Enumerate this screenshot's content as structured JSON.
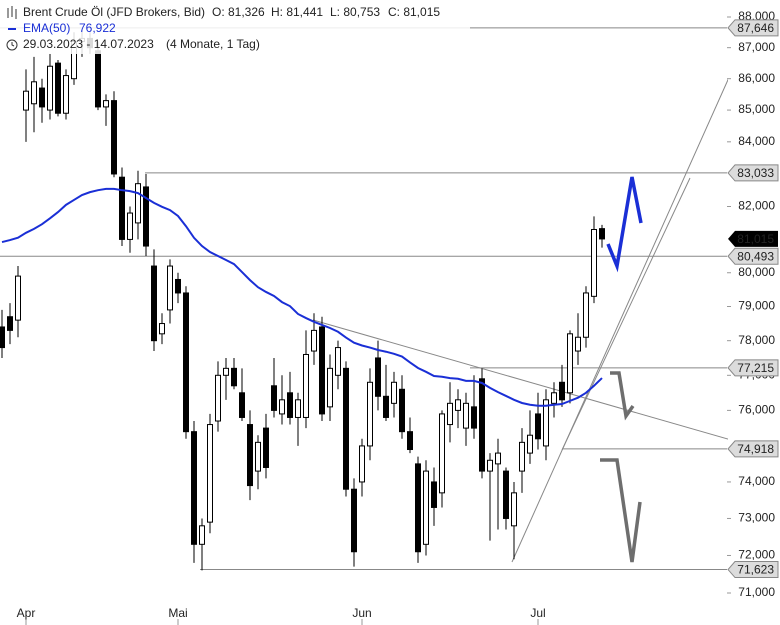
{
  "chart_data": {
    "type": "candlestick",
    "header": {
      "title": "Brent Crude Öl (JFD Brokers, Bid)",
      "open_label": "O: 81,326",
      "high_label": "H: 81,441",
      "low_label": "L: 80,753",
      "close_label": "C: 81,015",
      "indicator_value_label": "76,922",
      "date_range": "29.03.2023 - 14.07.2023",
      "duration": "(4 Monate, 1 Tag)"
    },
    "categories": [
      null,
      null,
      null,
      "Apr",
      null,
      null,
      null,
      null,
      null,
      null,
      null,
      null,
      null,
      null,
      null,
      null,
      null,
      null,
      null,
      null,
      null,
      null,
      "Mai",
      null,
      null,
      null,
      null,
      null,
      null,
      null,
      null,
      null,
      null,
      null,
      null,
      null,
      null,
      null,
      null,
      null,
      null,
      null,
      null,
      null,
      null,
      "Jun",
      null,
      null,
      null,
      null,
      null,
      null,
      null,
      null,
      null,
      null,
      null,
      null,
      null,
      null,
      null,
      null,
      null,
      null,
      null,
      null,
      null,
      "Jul",
      null,
      null,
      null,
      null,
      null,
      null,
      null,
      null
    ],
    "open": [
      78400,
      78700,
      78600,
      85000,
      85200,
      85700,
      85000,
      86500,
      84900,
      86000,
      87200,
      87300,
      86900,
      85100,
      85300,
      82900,
      81000,
      81500,
      82600,
      80200,
      78200,
      78900,
      79800,
      79400,
      75400,
      72300,
      72900,
      75700,
      77000,
      77200,
      76500,
      75600,
      74300,
      75500,
      76700,
      75900,
      76500,
      75800,
      75800,
      77700,
      78400,
      76100,
      77000,
      77200,
      73800,
      74000,
      75000,
      77500,
      76400,
      76200,
      76600,
      75400,
      74500,
      72300,
      74000,
      73700,
      75600,
      76000,
      75500,
      76100,
      76900,
      74300,
      74500,
      74300,
      72800,
      74300,
      74800,
      75900,
      75000,
      76200,
      76800,
      76500,
      77700,
      78100,
      79300,
      81326
    ],
    "high": [
      78900,
      79100,
      80200,
      86300,
      86700,
      86000,
      86800,
      86600,
      86300,
      87500,
      87600,
      87500,
      87200,
      85500,
      85600,
      83200,
      82000,
      83100,
      83000,
      80700,
      78800,
      80400,
      80000,
      79600,
      75700,
      73000,
      75900,
      77400,
      77500,
      77500,
      77200,
      76000,
      75300,
      75900,
      77500,
      77000,
      77100,
      76500,
      78300,
      78800,
      78700,
      77600,
      78000,
      77400,
      74100,
      75200,
      77200,
      78000,
      77300,
      77100,
      77000,
      75800,
      74700,
      74600,
      74400,
      76000,
      76800,
      76600,
      76500,
      77000,
      77200,
      74800,
      75200,
      74400,
      74000,
      75500,
      76000,
      76500,
      76600,
      76800,
      77300,
      78300,
      78800,
      79600,
      81700,
      81441
    ],
    "low": [
      77500,
      77900,
      78100,
      84000,
      84300,
      84600,
      84700,
      84800,
      84700,
      85800,
      86700,
      86800,
      85000,
      84500,
      82900,
      80800,
      80600,
      81000,
      80500,
      77700,
      77900,
      78500,
      79100,
      75200,
      71800,
      71600,
      72600,
      75400,
      76300,
      76600,
      75700,
      73500,
      73800,
      74100,
      75800,
      75600,
      75600,
      75000,
      75500,
      77300,
      75700,
      75700,
      76600,
      73600,
      71700,
      73600,
      74600,
      76000,
      75700,
      75800,
      75200,
      74800,
      71800,
      72000,
      72800,
      73300,
      75100,
      75500,
      75000,
      75200,
      74100,
      72400,
      72700,
      72700,
      71900,
      73700,
      74500,
      74900,
      74600,
      75800,
      76100,
      76200,
      77300,
      77800,
      79100,
      80753
    ],
    "close": [
      77800,
      78300,
      79900,
      85600,
      85900,
      85100,
      86400,
      84900,
      86100,
      87200,
      87300,
      87000,
      85100,
      85300,
      83000,
      81000,
      81800,
      82700,
      80800,
      78000,
      78500,
      80200,
      79400,
      75400,
      72300,
      72800,
      75600,
      77000,
      77200,
      76700,
      75800,
      73900,
      75100,
      74400,
      76000,
      76300,
      75800,
      76300,
      77600,
      78300,
      75900,
      77200,
      77800,
      73800,
      72100,
      75000,
      76800,
      76400,
      75800,
      76800,
      75400,
      74900,
      72100,
      74300,
      73300,
      75900,
      76200,
      76300,
      76200,
      75500,
      74300,
      74600,
      74800,
      73000,
      73700,
      75100,
      75300,
      75200,
      76300,
      76500,
      76300,
      78200,
      78100,
      79400,
      81300,
      81015
    ],
    "series": [
      {
        "name": "EMA(50)",
        "color": "#1a2fd6",
        "values": [
          80920,
          80980,
          81050,
          81200,
          81320,
          81460,
          81640,
          81830,
          82050,
          82200,
          82350,
          82440,
          82500,
          82540,
          82540,
          82500,
          82470,
          82410,
          82260,
          82110,
          81990,
          81890,
          81710,
          81400,
          81050,
          80800,
          80620,
          80500,
          80380,
          80260,
          80020,
          79780,
          79570,
          79430,
          79310,
          79130,
          79010,
          78780,
          78660,
          78550,
          78460,
          78370,
          78260,
          78090,
          77940,
          77860,
          77800,
          77730,
          77680,
          77620,
          77540,
          77370,
          77210,
          77100,
          76980,
          76960,
          76920,
          76900,
          76840,
          76840,
          76780,
          76640,
          76520,
          76410,
          76300,
          76210,
          76160,
          76130,
          76130,
          76160,
          76180,
          76270,
          76360,
          76500,
          76700,
          76922
        ]
      }
    ],
    "levels": [
      {
        "value": 87646,
        "label": "87,646"
      },
      {
        "value": 83033,
        "label": "83,033"
      },
      {
        "value": 80493,
        "label": "80,493"
      },
      {
        "value": 77215,
        "label": "77,215"
      },
      {
        "value": 74918,
        "label": "74,918"
      },
      {
        "value": 71623,
        "label": "71,623"
      }
    ],
    "last_price": {
      "value": 81015,
      "label": "81,015"
    },
    "log_scale": true,
    "ylim": [
      71000,
      88000
    ],
    "yticks": [
      {
        "value": 71000,
        "label": "71,000"
      },
      {
        "value": 72000,
        "label": "72,000"
      },
      {
        "value": 73000,
        "label": "73,000"
      },
      {
        "value": 74000,
        "label": "74,000"
      },
      {
        "value": 76000,
        "label": "76,000"
      },
      {
        "value": 77000,
        "label": "77,000"
      },
      {
        "value": 78000,
        "label": "78,000"
      },
      {
        "value": 79000,
        "label": "79,000"
      },
      {
        "value": 80000,
        "label": "80,000"
      },
      {
        "value": 82000,
        "label": "82,000"
      },
      {
        "value": 84000,
        "label": "84,000"
      },
      {
        "value": 85000,
        "label": "85,000"
      },
      {
        "value": 86000,
        "label": "86,000"
      },
      {
        "value": 87000,
        "label": "87,000"
      },
      {
        "value": 88000,
        "label": "88,000"
      }
    ],
    "grid": false
  }
}
